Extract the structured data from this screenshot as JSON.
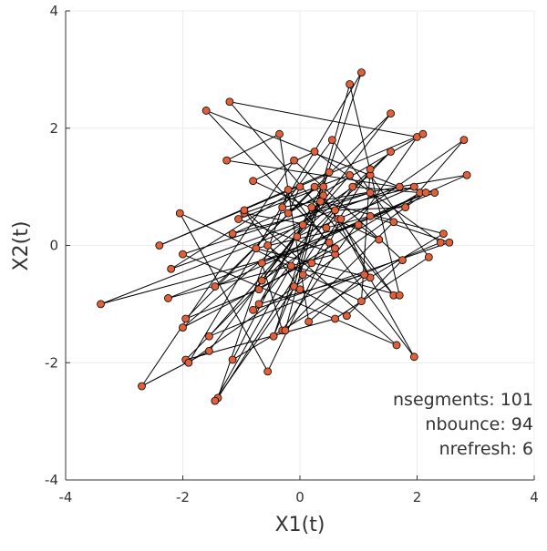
{
  "chart_data": {
    "type": "line",
    "xlabel": "X1(t)",
    "ylabel": "X2(t)",
    "xlim": [
      -4,
      4
    ],
    "ylim": [
      -4,
      4
    ],
    "x_ticks": [
      -4,
      -2,
      0,
      2,
      4
    ],
    "y_ticks": [
      -4,
      -2,
      0,
      2,
      4
    ],
    "x_tick_labels": [
      "-4",
      "-2",
      "0",
      "2",
      "4"
    ],
    "y_tick_labels": [
      "-4",
      "-2",
      "0",
      "2",
      "4"
    ],
    "grid": true,
    "legend": "none",
    "annotations": [
      "nsegments: 101",
      "nbounce: 94",
      "nrefresh: 6"
    ],
    "annotation_placement": "bottom-right",
    "marker_color": "#e0603a",
    "line_color": "#000000",
    "grid_color": "#ececec",
    "series": [
      {
        "marker": "circle",
        "x": [
          0.05,
          -0.55,
          1.2,
          2.2,
          0.6,
          -1.95,
          1.55,
          -0.05,
          0.65,
          1.95,
          -1.15,
          0.4,
          1.95,
          -0.2,
          -1.4,
          0.9,
          2.05,
          -0.7,
          -1.95,
          0.25,
          1.6,
          -1.2,
          2.0,
          -0.3,
          -0.65,
          2.15,
          -1.9,
          1.05,
          -0.45,
          -0.1,
          0.85,
          1.7,
          -0.15,
          -1.45,
          0.2,
          1.2,
          1.05,
          -2.05,
          -0.55,
          0.7,
          1.2,
          -0.75,
          1.0,
          1.35,
          -0.8,
          0.25,
          2.4,
          -1.55,
          0.85,
          -0.95,
          0.45,
          1.2,
          2.55,
          -0.8,
          0.6,
          1.8,
          2.8,
          -0.65,
          1.55,
          -1.45,
          2.85,
          -0.3,
          0.55,
          1.6,
          -0.25,
          0.4,
          -1.05,
          0.6,
          -2.25,
          2.3,
          -1.25,
          -0.35,
          0.15,
          1.1,
          -0.7,
          0.2,
          1.2,
          -2.0,
          1.65,
          -0.95,
          0.0,
          0.8,
          1.75,
          -0.1,
          -2.7,
          -1.55,
          0.35,
          2.45,
          -1.15,
          0.5,
          -2.4,
          2.1,
          -0.2,
          0.0,
          -2.2,
          1.7,
          -1.6,
          0.5,
          -3.4,
          0.05,
          -2.0,
          0.6
        ],
        "y": [
          -0.5,
          0.0,
          1.2,
          -0.2,
          -1.25,
          -1.95,
          1.6,
          0.15,
          0.45,
          1.0,
          0.2,
          0.85,
          -1.9,
          0.95,
          -2.6,
          1.0,
          0.9,
          -0.75,
          -1.25,
          1.0,
          -0.85,
          2.45,
          1.85,
          -1.45,
          -0.3,
          0.9,
          -2.0,
          2.95,
          -1.55,
          -0.7,
          2.75,
          -0.85,
          -0.35,
          -2.65,
          -0.3,
          1.3,
          -0.95,
          0.55,
          -2.15,
          0.45,
          -0.55,
          -0.05,
          0.35,
          0.1,
          1.1,
          1.6,
          0.05,
          -1.55,
          1.2,
          0.55,
          0.3,
          0.5,
          0.05,
          -1.1,
          0.6,
          0.65,
          1.8,
          -0.6,
          2.25,
          -0.7,
          1.2,
          0.65,
          1.8,
          0.4,
          -1.45,
          1.0,
          0.45,
          -0.15,
          -0.9,
          0.9,
          1.45,
          1.9,
          -1.3,
          -0.5,
          -1.0,
          0.65,
          0.9,
          -0.15,
          -1.7,
          0.6,
          -0.75,
          -1.2,
          -0.25,
          1.45,
          -2.4,
          -1.8,
          0.75,
          0.2,
          -1.95,
          1.25,
          0.0,
          1.9,
          0.55,
          1.0,
          -0.4,
          1.0,
          2.3,
          0.05,
          -1.0,
          0.35,
          -1.4,
          -0.05
        ]
      }
    ]
  }
}
